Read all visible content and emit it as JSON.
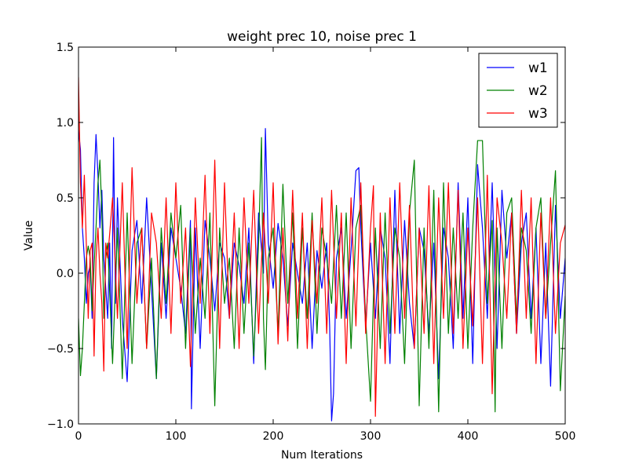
{
  "chart_data": {
    "type": "line",
    "title": "weight prec 10, noise prec 1",
    "xlabel": "Num Iterations",
    "ylabel": "Value",
    "xlim": [
      0,
      500
    ],
    "ylim": [
      -1.0,
      1.5
    ],
    "xticks": [
      0,
      100,
      200,
      300,
      400,
      500
    ],
    "yticks": [
      -1.0,
      -0.5,
      0.0,
      0.5,
      1.0,
      1.5
    ],
    "xtick_labels": [
      "0",
      "100",
      "200",
      "300",
      "400",
      "500"
    ],
    "ytick_labels": [
      "−1.0",
      "−0.5",
      "0.0",
      "0.5",
      "1.0",
      "1.5"
    ],
    "grid": false,
    "legend_position": "top-right",
    "series": [
      {
        "name": "w1",
        "color": "#0000ff",
        "x": [
          0,
          2,
          4,
          6,
          8,
          10,
          12,
          14,
          16,
          18,
          20,
          22,
          24,
          26,
          28,
          30,
          32,
          34,
          36,
          38,
          40,
          45,
          50,
          55,
          60,
          65,
          70,
          75,
          80,
          85,
          90,
          95,
          100,
          105,
          110,
          115,
          116,
          120,
          125,
          130,
          135,
          140,
          145,
          150,
          155,
          160,
          165,
          170,
          175,
          180,
          185,
          190,
          192,
          195,
          200,
          205,
          210,
          215,
          220,
          225,
          230,
          235,
          240,
          245,
          250,
          255,
          258,
          260,
          262,
          265,
          270,
          275,
          280,
          285,
          288,
          290,
          295,
          300,
          305,
          310,
          315,
          320,
          325,
          330,
          335,
          340,
          345,
          350,
          355,
          360,
          365,
          370,
          375,
          380,
          385,
          390,
          395,
          400,
          405,
          410,
          415,
          420,
          425,
          430,
          435,
          440,
          445,
          450,
          455,
          460,
          465,
          470,
          475,
          480,
          485,
          490,
          495,
          500
        ],
        "values": [
          0.95,
          0.82,
          0.3,
          0.1,
          -0.2,
          0.0,
          0.05,
          -0.3,
          0.6,
          0.92,
          0.65,
          0.3,
          0.55,
          0.1,
          -0.1,
          -0.3,
          0.2,
          -0.5,
          0.9,
          -0.2,
          0.5,
          -0.3,
          -0.72,
          0.15,
          0.35,
          -0.2,
          0.5,
          -0.1,
          -0.7,
          0.2,
          -0.3,
          0.3,
          0.1,
          -0.1,
          -0.4,
          0.35,
          -0.9,
          0.3,
          -0.5,
          0.35,
          0.1,
          -0.25,
          0.2,
          0.1,
          -0.3,
          0.2,
          0.05,
          -0.2,
          0.3,
          -0.6,
          0.4,
          0.0,
          0.96,
          0.2,
          -0.1,
          0.33,
          0.1,
          -0.35,
          0.2,
          0.0,
          -0.2,
          0.2,
          -0.5,
          0.15,
          -0.1,
          0.2,
          -0.35,
          -0.98,
          -0.8,
          0.1,
          0.3,
          -0.3,
          0.15,
          0.68,
          0.7,
          0.3,
          -0.35,
          0.2,
          -0.3,
          0.3,
          0.1,
          -0.6,
          0.55,
          -0.4,
          0.35,
          -0.2,
          -0.5,
          0.3,
          0.15,
          -0.4,
          0.2,
          -0.7,
          0.3,
          0.1,
          -0.5,
          0.6,
          -0.3,
          0.5,
          -0.6,
          0.72,
          0.3,
          -0.3,
          0.6,
          -0.5,
          0.55,
          0.1,
          0.4,
          -0.4,
          0.2,
          0.4,
          -0.3,
          0.3,
          -0.6,
          0.2,
          -0.75,
          0.45,
          -0.3,
          0.1
        ]
      },
      {
        "name": "w2",
        "color": "#008000",
        "x": [
          0,
          2,
          4,
          6,
          8,
          10,
          12,
          14,
          16,
          18,
          20,
          22,
          24,
          26,
          28,
          30,
          35,
          40,
          45,
          50,
          55,
          60,
          65,
          70,
          75,
          80,
          85,
          90,
          95,
          100,
          105,
          110,
          115,
          120,
          125,
          130,
          135,
          140,
          145,
          150,
          155,
          160,
          165,
          170,
          175,
          180,
          185,
          188,
          190,
          192,
          195,
          200,
          205,
          210,
          215,
          220,
          225,
          230,
          235,
          240,
          245,
          250,
          255,
          260,
          265,
          270,
          275,
          280,
          285,
          290,
          295,
          300,
          305,
          310,
          315,
          320,
          325,
          330,
          335,
          340,
          345,
          350,
          355,
          360,
          365,
          370,
          375,
          380,
          385,
          390,
          395,
          400,
          405,
          410,
          415,
          420,
          425,
          428,
          430,
          435,
          440,
          445,
          450,
          455,
          460,
          465,
          470,
          475,
          480,
          485,
          490,
          495,
          500
        ],
        "values": [
          -0.3,
          -0.68,
          -0.5,
          -0.2,
          0.1,
          0.18,
          0.1,
          -0.25,
          0.05,
          0.3,
          0.6,
          0.75,
          0.4,
          -0.3,
          0.1,
          0.2,
          -0.6,
          0.3,
          -0.7,
          0.4,
          -0.6,
          0.2,
          0.3,
          -0.5,
          0.1,
          -0.7,
          0.3,
          -0.2,
          0.4,
          0.1,
          0.45,
          -0.5,
          0.3,
          -0.4,
          0.1,
          -0.3,
          0.4,
          -0.88,
          0.3,
          -0.2,
          0.1,
          -0.5,
          0.3,
          -0.4,
          0.2,
          -0.55,
          0.2,
          0.9,
          -0.3,
          -0.64,
          0.1,
          0.3,
          -0.4,
          0.59,
          -0.2,
          0.4,
          -0.5,
          0.3,
          -0.3,
          0.4,
          -0.4,
          0.3,
          0.1,
          -0.2,
          0.45,
          -0.3,
          0.4,
          -0.5,
          0.3,
          0.45,
          -0.3,
          -0.85,
          0.3,
          -0.5,
          0.4,
          -0.4,
          0.3,
          0.1,
          -0.6,
          0.4,
          0.75,
          -0.88,
          0.3,
          -0.5,
          0.55,
          -0.92,
          0.6,
          -0.4,
          0.3,
          -0.3,
          0.4,
          -0.5,
          0.3,
          0.88,
          0.88,
          -0.2,
          0.35,
          -0.92,
          0.3,
          -0.5,
          0.4,
          0.5,
          -0.3,
          0.3,
          0.15,
          -0.4,
          0.3,
          0.5,
          -0.3,
          0.2,
          0.68,
          -0.78,
          -0.15
        ]
      },
      {
        "name": "w3",
        "color": "#ff0000",
        "x": [
          0,
          2,
          4,
          6,
          8,
          10,
          12,
          14,
          16,
          18,
          20,
          22,
          24,
          26,
          28,
          30,
          35,
          40,
          45,
          50,
          55,
          60,
          65,
          70,
          75,
          80,
          85,
          90,
          95,
          100,
          105,
          110,
          115,
          120,
          125,
          130,
          135,
          140,
          145,
          150,
          155,
          160,
          165,
          170,
          175,
          180,
          185,
          190,
          195,
          200,
          205,
          210,
          215,
          220,
          225,
          230,
          235,
          240,
          245,
          250,
          255,
          260,
          265,
          270,
          275,
          280,
          285,
          290,
          295,
          300,
          303,
          305,
          310,
          315,
          320,
          325,
          330,
          335,
          340,
          345,
          350,
          355,
          360,
          365,
          370,
          375,
          380,
          385,
          390,
          395,
          400,
          405,
          410,
          415,
          420,
          425,
          430,
          435,
          440,
          445,
          450,
          455,
          460,
          465,
          470,
          475,
          480,
          485,
          490,
          495,
          500
        ],
        "values": [
          1.3,
          0.6,
          0.3,
          0.65,
          0.2,
          -0.3,
          0.15,
          0.2,
          -0.55,
          0.1,
          0.3,
          0.0,
          -0.2,
          -0.65,
          0.2,
          0.1,
          0.5,
          -0.3,
          0.6,
          -0.5,
          0.7,
          -0.2,
          0.3,
          -0.5,
          0.4,
          0.2,
          -0.3,
          0.5,
          -0.4,
          0.6,
          -0.2,
          0.3,
          -0.62,
          0.5,
          -0.2,
          0.65,
          -0.4,
          0.75,
          -0.5,
          0.6,
          -0.3,
          0.4,
          -0.5,
          0.5,
          -0.2,
          0.55,
          -0.4,
          0.4,
          -0.2,
          0.6,
          -0.47,
          0.3,
          -0.45,
          0.55,
          -0.3,
          0.4,
          -0.5,
          0.35,
          -0.2,
          0.5,
          -0.4,
          0.55,
          -0.3,
          0.4,
          -0.6,
          0.5,
          -0.35,
          0.6,
          -0.4,
          0.3,
          0.58,
          -0.95,
          0.4,
          -0.6,
          0.5,
          -0.4,
          0.6,
          -0.3,
          0.45,
          -0.5,
          0.3,
          -0.4,
          0.58,
          -0.6,
          0.5,
          -0.3,
          0.6,
          -0.4,
          0.55,
          -0.5,
          0.3,
          -0.35,
          0.5,
          -0.6,
          0.65,
          -0.8,
          0.5,
          0.2,
          -0.3,
          0.4,
          -0.4,
          0.55,
          -0.3,
          0.5,
          -0.6,
          0.4,
          -0.3,
          0.5,
          -0.4,
          0.2,
          0.32
        ]
      }
    ]
  }
}
